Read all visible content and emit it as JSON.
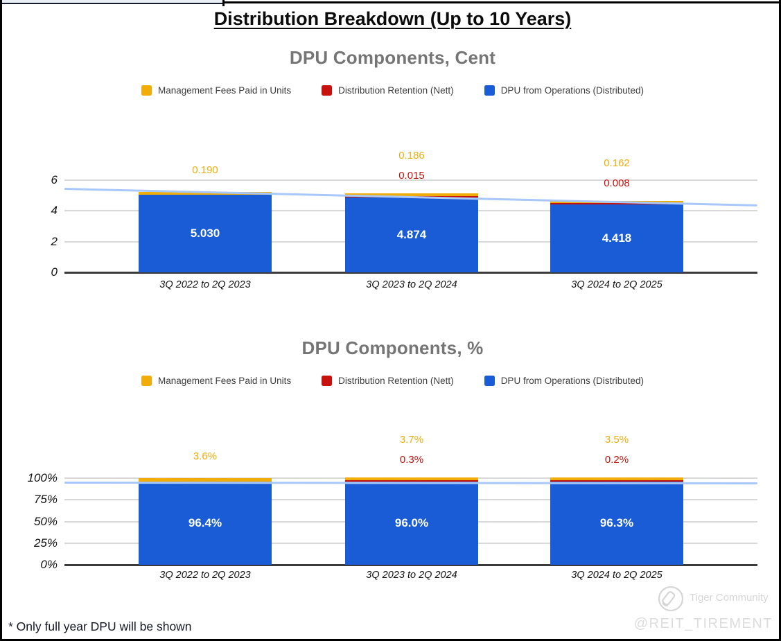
{
  "page": {
    "main_title": "Distribution Breakdown (Up to 10 Years)",
    "footnote": "* Only full year DPU will be shown",
    "watermark": {
      "community": "Tiger Community",
      "handle": "@REIT_TIREMENT"
    }
  },
  "colors": {
    "fees": "#F0AD0A",
    "retention": "#C5120D",
    "dpu": "#1A5CD6",
    "trend": "#A8C7FA",
    "grid": "#D8D8D8",
    "axis": "#3a3a3a",
    "chart_title_gray": "#757575"
  },
  "legend": [
    {
      "label": "Management Fees Paid in Units",
      "color_key": "fees"
    },
    {
      "label": "Distribution Retention (Nett)",
      "color_key": "retention"
    },
    {
      "label": "DPU from Operations (Distributed)",
      "color_key": "dpu"
    }
  ],
  "chart_data": [
    {
      "type": "bar",
      "stacked": true,
      "title": "DPU Components, Cent",
      "legend_position": "top",
      "grid": true,
      "categories": [
        "3Q 2022 to 2Q 2023",
        "3Q 2023 to 2Q 2024",
        "3Q 2024 to 2Q 2025"
      ],
      "series": [
        {
          "key": "dpu",
          "name": "DPU from Operations (Distributed)",
          "color_key": "dpu",
          "values": [
            5.03,
            4.874,
            4.418
          ],
          "labels": [
            "5.030",
            "4.874",
            "4.418"
          ],
          "label_style": "inside"
        },
        {
          "key": "retention",
          "name": "Distribution Retention (Nett)",
          "color_key": "retention",
          "values": [
            0,
            0.015,
            0.008
          ],
          "labels": [
            "",
            "0.015",
            "0.008"
          ],
          "label_style": "above"
        },
        {
          "key": "fees",
          "name": "Management Fees Paid in Units",
          "color_key": "fees",
          "values": [
            0.19,
            0.186,
            0.162
          ],
          "labels": [
            "0.190",
            "0.186",
            "0.162"
          ],
          "label_style": "above"
        }
      ],
      "y_axis": {
        "ticks": [
          {
            "value": 0,
            "label": "0"
          },
          {
            "value": 2,
            "label": "2"
          },
          {
            "value": 4,
            "label": "4"
          },
          {
            "value": 6,
            "label": "6"
          }
        ],
        "range": [
          0,
          6.3
        ]
      },
      "trend_line": {
        "color_key": "trend",
        "left_value": 5.45,
        "right_value": 4.37
      }
    },
    {
      "type": "bar",
      "stacked": true,
      "title": "DPU Components, %",
      "legend_position": "top",
      "grid": true,
      "categories": [
        "3Q 2022 to 2Q 2023",
        "3Q 2023 to 2Q 2024",
        "3Q 2024 to 2Q 2025"
      ],
      "series": [
        {
          "key": "dpu",
          "name": "DPU from Operations (Distributed)",
          "color_key": "dpu",
          "values": [
            96.4,
            96.0,
            96.3
          ],
          "labels": [
            "96.4%",
            "96.0%",
            "96.3%"
          ],
          "label_style": "inside"
        },
        {
          "key": "retention",
          "name": "Distribution Retention (Nett)",
          "color_key": "retention",
          "values": [
            0,
            0.3,
            0.2
          ],
          "labels": [
            "",
            "0.3%",
            "0.2%"
          ],
          "label_style": "above"
        },
        {
          "key": "fees",
          "name": "Management Fees Paid in Units",
          "color_key": "fees",
          "values": [
            3.6,
            3.7,
            3.5
          ],
          "labels": [
            "3.6%",
            "3.7%",
            "3.5%"
          ],
          "label_style": "above"
        }
      ],
      "y_axis": {
        "ticks": [
          {
            "value": 0,
            "label": "0%"
          },
          {
            "value": 25,
            "label": "25%"
          },
          {
            "value": 50,
            "label": "50%"
          },
          {
            "value": 75,
            "label": "75%"
          },
          {
            "value": 100,
            "label": "100%"
          }
        ],
        "range": [
          0,
          104
        ]
      },
      "trend_line": {
        "color_key": "trend",
        "left_value": 95.2,
        "right_value": 94.4
      }
    }
  ]
}
